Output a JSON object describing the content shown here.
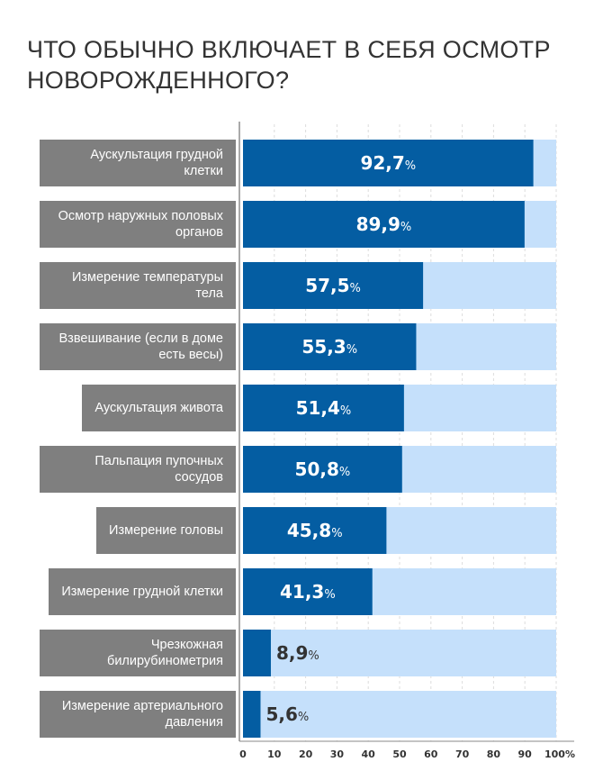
{
  "title": "ЧТО ОБЫЧНО ВКЛЮЧАЕТ В СЕБЯ ОСМОТР НОВОРОЖДЕННОГО?",
  "chart_data": {
    "type": "bar",
    "orientation": "horizontal",
    "title": "ЧТО ОБЫЧНО ВКЛЮЧАЕТ В СЕБЯ ОСМОТР НОВОРОЖДЕННОГО?",
    "categories": [
      "Аускультация грудной клетки",
      "Осмотр наружных половых органов",
      "Измерение температуры тела",
      "Взвешивание (если в доме есть весы)",
      "Аускультация живота",
      "Пальпация пупочных сосудов",
      "Измерение головы",
      "Измерение грудной клетки",
      "Чрезкожная билирубинометрия",
      "Измерение артериального давления"
    ],
    "values": [
      92.7,
      89.9,
      57.5,
      55.3,
      51.4,
      50.8,
      45.8,
      41.3,
      8.9,
      5.6
    ],
    "value_labels": [
      "92,7",
      "89,9",
      "57,5",
      "55,3",
      "51,4",
      "50,8",
      "45,8",
      "41,3",
      "8,9",
      "5,6"
    ],
    "value_suffix": "%",
    "xlim": [
      0,
      100
    ],
    "xticks": [
      "0",
      "10",
      "20",
      "30",
      "40",
      "50",
      "60",
      "70",
      "80",
      "90",
      "100%"
    ],
    "grid": true,
    "colors": {
      "bar": "#045da2",
      "track": "#c5e0fb",
      "label_bg": "#7f7f7f"
    }
  }
}
